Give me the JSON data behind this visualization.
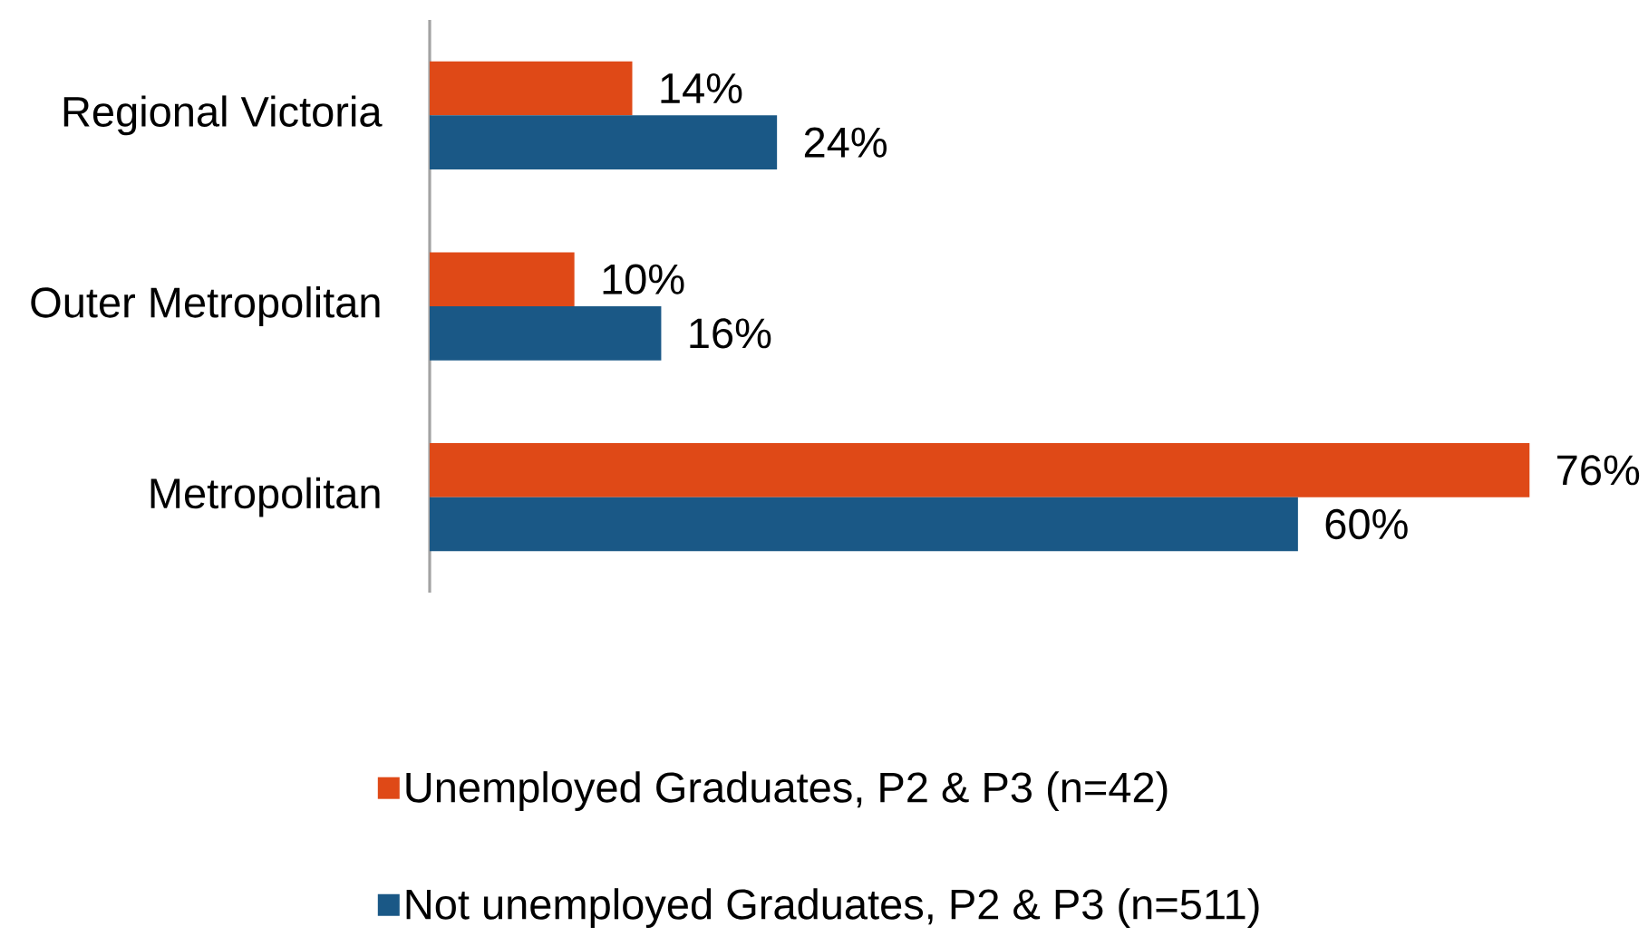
{
  "chart_data": {
    "type": "bar",
    "orientation": "horizontal",
    "categories": [
      "Regional Victoria",
      "Outer Metropolitan",
      "Metropolitan"
    ],
    "series": [
      {
        "name": "Unemployed Graduates, P2 & P3 (n=42)",
        "color": "#df4917",
        "values": [
          14,
          10,
          76
        ],
        "value_labels": [
          "14%",
          "10%",
          "76%"
        ]
      },
      {
        "name": "Not unemployed Graduates, P2 & P3 (n=511)",
        "color": "#1a5886",
        "values": [
          24,
          16,
          60
        ],
        "value_labels": [
          "24%",
          "16%",
          "60%"
        ]
      }
    ],
    "legend": "bottom",
    "tick_labels": "y"
  }
}
